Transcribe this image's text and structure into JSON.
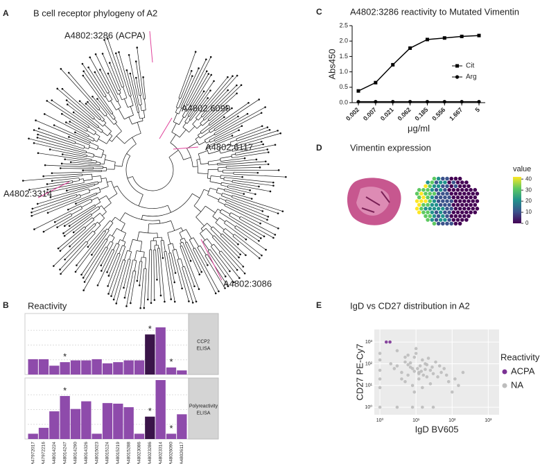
{
  "panel_labels": [
    "A",
    "B",
    "C",
    "D",
    "E"
  ],
  "tree": {
    "title": "B cell receptor phylogeny of A2",
    "labels": [
      "A4802:3286 (ACPA)",
      "A4802:6090",
      "A4802:6117",
      "A4802:3314",
      "A4802:3086"
    ]
  },
  "expression": {
    "title": "Vimentin expression",
    "colorbar_title": "value",
    "colorbar_lim": [
      0,
      42
    ],
    "colorbar_ticks": [
      0,
      10,
      20,
      30,
      40
    ]
  },
  "chart_data": [
    {
      "type": "line",
      "title": "A4802:3286 reactivity to Mutated Vimentin",
      "xlabel": "μg/ml",
      "ylabel": "Abs450",
      "categories": [
        "0.002",
        "0.007",
        "0.021",
        "0.062",
        "0.185",
        "0.556",
        "1.667",
        "5"
      ],
      "series": [
        {
          "name": "Cit",
          "color": "#000000",
          "marker": "square",
          "values": [
            0.38,
            0.65,
            1.23,
            1.77,
            2.05,
            2.1,
            2.15,
            2.18
          ]
        },
        {
          "name": "Arg",
          "color": "#000000",
          "marker": "circle",
          "values": [
            0.03,
            0.03,
            0.03,
            0.03,
            0.03,
            0.03,
            0.03,
            0.03
          ]
        }
      ],
      "ylim": [
        0,
        2.5
      ],
      "yticks": [
        {
          "value": 0,
          "label": "0.0"
        },
        0.5,
        {
          "value": 1,
          "label": "1.0"
        },
        1.5,
        {
          "value": 2,
          "label": "2.0"
        },
        2.5
      ]
    },
    {
      "type": "facet_bar",
      "title": "Reactivity",
      "color": "#8e4bab",
      "highlight_color": "#3a1449",
      "highlight": 11,
      "categories": [
        "A47972017",
        "A47972216",
        "A48014224",
        "A48014247",
        "A48014290",
        "A48014326",
        "A48015023",
        "A48015124",
        "A48015219",
        "A48015288",
        "A48023086",
        "A48023286",
        "A48023314",
        "A48026090",
        "A48026117"
      ],
      "ylim": [
        0,
        1
      ],
      "facets": [
        {
          "strip": [
            "CCP2",
            "ELISA"
          ],
          "values": [
            0.26,
            0.26,
            0.15,
            0.21,
            0.24,
            0.24,
            0.26,
            0.19,
            0.21,
            0.24,
            0.24,
            0.68,
            0.8,
            0.12,
            0.07
          ],
          "annotations": [
            {
              "text": "*",
              "index": 3
            },
            {
              "text": "*",
              "index": 11
            },
            {
              "text": "*",
              "index": 13
            }
          ]
        },
        {
          "strip": [
            "Polyreactivity",
            "ELISA"
          ],
          "values": [
            0.09,
            0.19,
            0.47,
            0.73,
            0.51,
            0.64,
            0.09,
            0.61,
            0.6,
            0.54,
            0.09,
            0.38,
            1.0,
            0.09,
            0.42
          ],
          "annotations": [
            {
              "text": "*",
              "index": 3
            },
            {
              "text": "*",
              "index": 11
            },
            {
              "text": "*",
              "index": 13
            }
          ]
        }
      ]
    },
    {
      "type": "scatter",
      "title": "IgD vs CD27 distribution in A2",
      "xlabel": "IgD BV605",
      "ylabel": "CD27 PE-Cy7",
      "legend_title": "Reactivity",
      "log_x": true,
      "log_y": true,
      "grid": true,
      "xlim": [
        0.7,
        2000
      ],
      "ylim": [
        0.45,
        3800
      ],
      "xticks": [
        {
          "value": 1,
          "label": "10⁰"
        },
        {
          "value": 10,
          "label": "10¹"
        },
        {
          "value": 100,
          "label": "10²"
        },
        {
          "value": 1000,
          "label": "10³"
        }
      ],
      "yticks": [
        {
          "value": 1,
          "label": "10⁰"
        },
        {
          "value": 10,
          "label": "10¹"
        },
        {
          "value": 100,
          "label": "10²"
        },
        {
          "value": 1000,
          "label": "10³"
        }
      ],
      "series": [
        {
          "name": "ACPA",
          "color": "#7b3294",
          "x": [
            1.5,
            1.9
          ],
          "y": [
            1000,
            1000
          ]
        },
        {
          "name": "NA",
          "color": "#bdbdbd",
          "x": [
            3,
            5,
            8,
            12,
            20,
            6,
            9,
            15,
            4,
            7,
            25,
            40,
            10,
            18,
            30,
            5,
            11,
            14,
            22,
            8,
            6,
            13,
            35,
            50,
            9,
            16,
            28,
            7,
            12,
            3,
            4,
            60,
            80,
            10,
            20,
            2,
            45,
            15,
            9,
            5,
            70,
            120,
            150,
            200,
            2.5,
            1,
            1,
            1,
            1,
            3,
            8,
            15,
            30,
            1,
            1,
            100,
            12,
            6,
            18,
            25
          ],
          "y": [
            80,
            120,
            60,
            40,
            90,
            30,
            200,
            150,
            20,
            70,
            50,
            25,
            300,
            100,
            35,
            15,
            60,
            45,
            180,
            10,
            250,
            80,
            120,
            40,
            5,
            30,
            70,
            110,
            20,
            400,
            40,
            60,
            15,
            500,
            25,
            100,
            80,
            8,
            45,
            200,
            30,
            20,
            10,
            40,
            60,
            1,
            50,
            150,
            8,
            1,
            1,
            1,
            1,
            20,
            300,
            5,
            35,
            90,
            55,
            12
          ]
        }
      ]
    }
  ]
}
